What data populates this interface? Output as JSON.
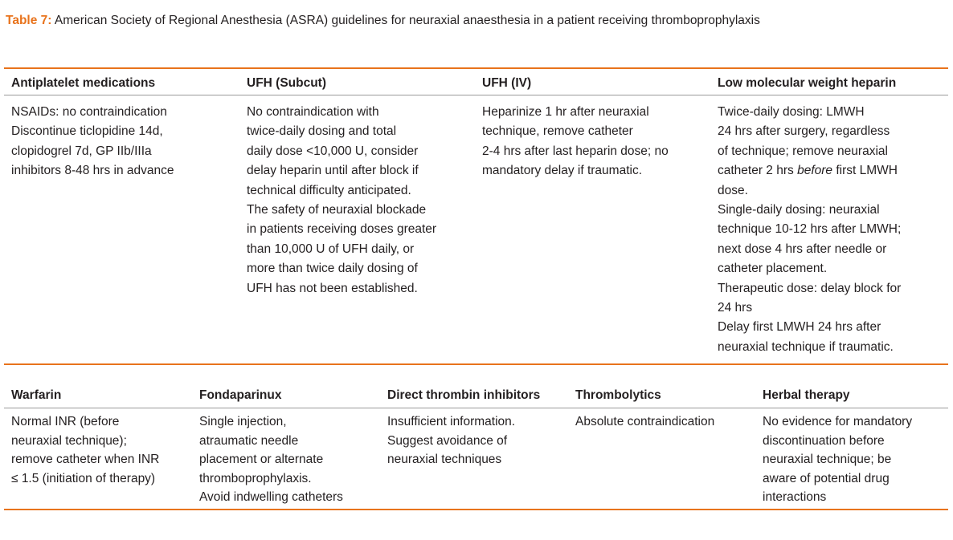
{
  "caption": {
    "label": "Table 7:",
    "text": "American Society of Regional Anesthesia (ASRA) guidelines for neuraxial anaesthesia in a patient receiving thromboprophylaxis"
  },
  "table1": {
    "headers": [
      "Antiplatelet medications",
      "UFH (Subcut)",
      "UFH (IV)",
      "Low molecular weight heparin"
    ],
    "cells": [
      [
        "NSAIDs: no contraindication",
        "Discontinue ticlopidine 14d,",
        "clopidogrel 7d, GP IIb/IIIa",
        "inhibitors 8-48 hrs in advance"
      ],
      [
        "No contraindication with",
        "twice-daily dosing and total",
        "daily dose <10,000 U, consider",
        "delay heparin until after block if",
        "technical difficulty anticipated.",
        "The safety of neuraxial blockade",
        "in patients receiving doses greater",
        "than 10,000 U of UFH daily, or",
        "more than twice daily dosing of",
        "UFH has not been established."
      ],
      [
        "Heparinize 1 hr after neuraxial",
        "technique, remove catheter",
        "2-4 hrs after last heparin dose; no",
        "mandatory delay if traumatic."
      ],
      [
        "Twice-daily dosing: LMWH",
        "24 hrs after surgery, regardless",
        "of technique; remove neuraxial",
        "catheter 2 hrs before first LMWH",
        "dose.",
        "Single-daily dosing: neuraxial",
        "technique 10-12 hrs after LMWH;",
        "next dose 4 hrs after needle or",
        "catheter placement.",
        "Therapeutic dose: delay block for",
        "24 hrs",
        "Delay first LMWH 24 hrs after",
        "neuraxial technique if traumatic."
      ]
    ]
  },
  "table2": {
    "headers": [
      "Warfarin",
      "Fondaparinux",
      "Direct thrombin inhibitors",
      "Thrombolytics",
      "Herbal therapy"
    ],
    "cells": [
      [
        "Normal INR (before",
        "neuraxial technique);",
        "remove catheter when INR",
        "≤ 1.5 (initiation of therapy)"
      ],
      [
        "Single injection,",
        "atraumatic needle",
        "placement or alternate",
        "thromboprophylaxis.",
        "Avoid indwelling catheters"
      ],
      [
        "Insufficient information.",
        "Suggest avoidance of",
        "neuraxial techniques"
      ],
      [
        "Absolute contraindication"
      ],
      [
        "No evidence for mandatory",
        "discontinuation before",
        "neuraxial technique; be",
        "aware of potential drug",
        "interactions"
      ]
    ]
  },
  "colors": {
    "accent": "#e8731c",
    "text": "#231f20",
    "rule": "#9a9a9a"
  }
}
